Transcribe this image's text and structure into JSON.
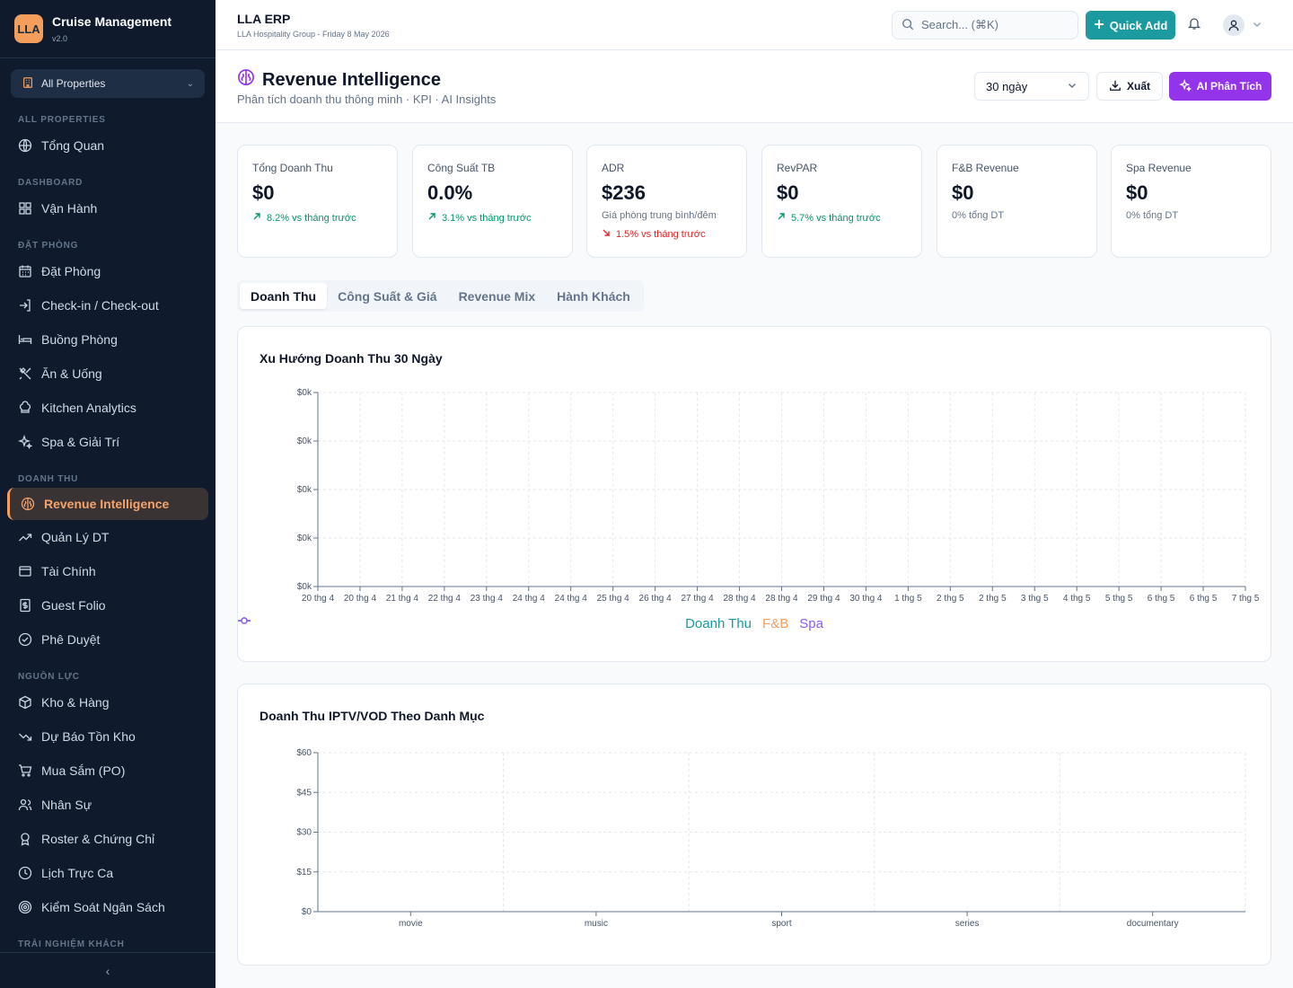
{
  "sidebar": {
    "logo": "LLA",
    "title": "Cruise Management",
    "version": "v2.0",
    "property_select": "All Properties",
    "sections": {
      "all": "ALL PROPERTIES",
      "dashboard": "DASHBOARD",
      "booking": "ĐẶT PHÒNG",
      "revenue": "DOANH THU",
      "resources": "NGUỒN LỰC",
      "experience": "TRẢI NGHIỆM KHÁCH"
    },
    "items": {
      "overview": "Tổng Quan",
      "operations": "Vận Hành",
      "booking": "Đặt Phòng",
      "checkin": "Check-in / Check-out",
      "rooms": "Buồng Phòng",
      "fnb": "Ăn & Uống",
      "kitchen": "Kitchen Analytics",
      "spa": "Spa & Giải Trí",
      "revenue_intel": "Revenue Intelligence",
      "revenue_mgmt": "Quản Lý DT",
      "finance": "Tài Chính",
      "folio": "Guest Folio",
      "approval": "Phê Duyệt",
      "warehouse": "Kho & Hàng",
      "forecast": "Dự Báo Tồn Kho",
      "purchase": "Mua Sắm (PO)",
      "hr": "Nhân Sự",
      "roster": "Roster & Chứng Chỉ",
      "shifts": "Lịch Trực Ca",
      "budget": "Kiểm Soát Ngân Sách"
    },
    "collapse_icon": "‹"
  },
  "header": {
    "title": "LLA ERP",
    "subtitle": "LLA Hospitality Group - Friday 8 May 2026",
    "search_placeholder": "Search... (⌘K)",
    "quick_add": "Quick Add"
  },
  "page": {
    "title": "Revenue Intelligence",
    "subtitle": "Phân tích doanh thu thông minh · KPI · AI Insights",
    "range": "30 ngày",
    "export": "Xuất",
    "ai": "AI Phân Tích"
  },
  "kpis": [
    {
      "label": "Tổng Doanh Thu",
      "value": "$0",
      "note": "",
      "trend": "8.2% vs tháng trước",
      "dir": "up"
    },
    {
      "label": "Công Suất TB",
      "value": "0.0%",
      "note": "",
      "trend": "3.1% vs tháng trước",
      "dir": "up"
    },
    {
      "label": "ADR",
      "value": "$236",
      "note": "Giá phòng trung bình/đêm",
      "trend": "1.5% vs tháng trước",
      "dir": "down"
    },
    {
      "label": "RevPAR",
      "value": "$0",
      "note": "",
      "trend": "5.7% vs tháng trước",
      "dir": "up"
    },
    {
      "label": "F&B Revenue",
      "value": "$0",
      "note": "0% tổng DT",
      "trend": "",
      "dir": ""
    },
    {
      "label": "Spa Revenue",
      "value": "$0",
      "note": "0% tổng DT",
      "trend": "",
      "dir": ""
    }
  ],
  "tabs": [
    "Doanh Thu",
    "Công Suất & Giá",
    "Revenue Mix",
    "Hành Khách"
  ],
  "colors": {
    "accent": "#f59e5b",
    "teal": "#1b9aa0",
    "purple": "#9333ea",
    "fnb": "#f59e5b",
    "spa": "#8b5cf6"
  },
  "chart_data": [
    {
      "type": "line",
      "title": "Xu Hướng Doanh Thu 30 Ngày",
      "categories": [
        "20 thg 4",
        "20 thg 4",
        "21 thg 4",
        "22 thg 4",
        "23 thg 4",
        "24 thg 4",
        "24 thg 4",
        "25 thg 4",
        "26 thg 4",
        "27 thg 4",
        "28 thg 4",
        "28 thg 4",
        "29 thg 4",
        "30 thg 4",
        "1 thg 5",
        "2 thg 5",
        "2 thg 5",
        "3 thg 5",
        "4 thg 5",
        "5 thg 5",
        "6 thg 5",
        "6 thg 5",
        "7 thg 5"
      ],
      "y_ticks": [
        "$0k",
        "$0k",
        "$0k",
        "$0k",
        "$0k"
      ],
      "series": [
        {
          "name": "Doanh Thu",
          "color": "#1b9aa0"
        },
        {
          "name": "F&B",
          "color": "#f59e5b"
        },
        {
          "name": "Spa",
          "color": "#8b5cf6"
        }
      ],
      "grid": true,
      "legend": "bottom"
    },
    {
      "type": "bar",
      "title": "Doanh Thu IPTV/VOD Theo Danh Mục",
      "categories": [
        "movie",
        "music",
        "sport",
        "series",
        "documentary"
      ],
      "values": [
        0,
        0,
        0,
        0,
        0
      ],
      "y_ticks": [
        "$0",
        "$15",
        "$30",
        "$45",
        "$60"
      ],
      "ylim": [
        0,
        60
      ],
      "grid": true
    }
  ]
}
